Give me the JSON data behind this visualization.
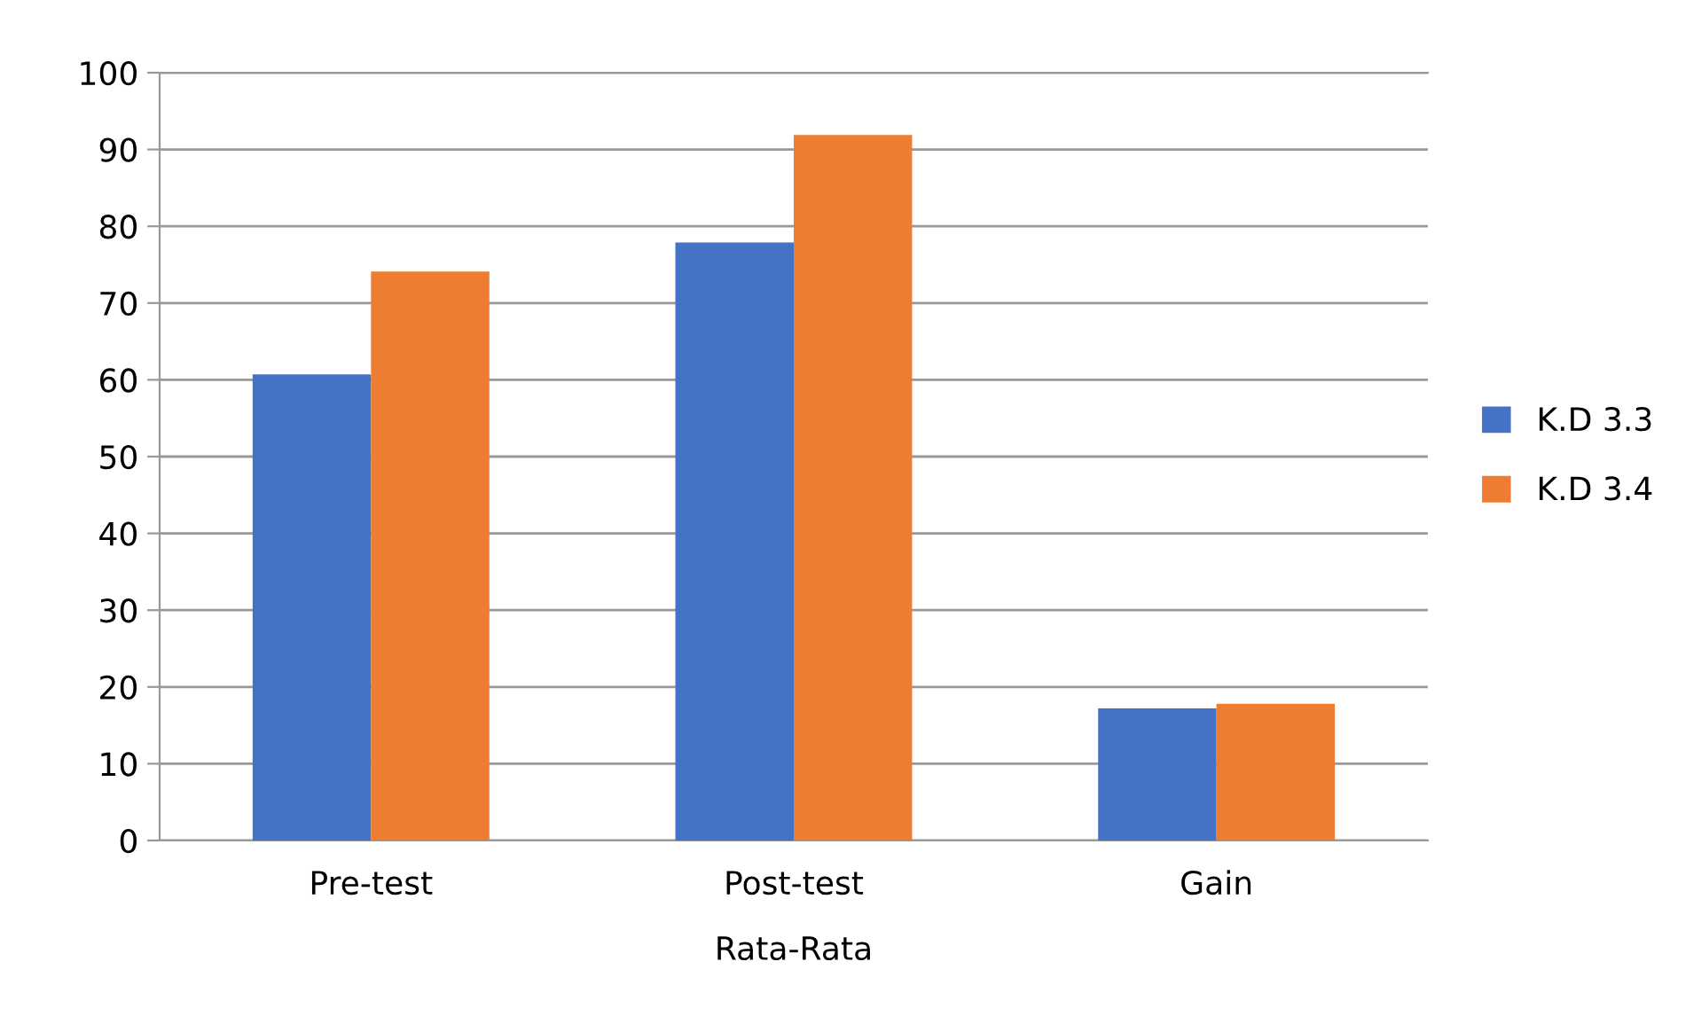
{
  "chart_data": {
    "type": "bar",
    "categories": [
      "Pre-test",
      "Post-test",
      "Gain"
    ],
    "xlabel": "Rata-Rata",
    "series": [
      {
        "name": "K.D 3.3",
        "color": "#4472c4",
        "values": [
          60.7,
          77.9,
          17.2
        ]
      },
      {
        "name": "K.D 3.4",
        "color": "#ed7d31",
        "values": [
          74.1,
          91.9,
          17.8
        ]
      }
    ],
    "ylim": [
      0,
      100
    ],
    "yticks": [
      0,
      10,
      20,
      30,
      40,
      50,
      60,
      70,
      80,
      90,
      100
    ],
    "grid": "y",
    "legend": "right"
  }
}
